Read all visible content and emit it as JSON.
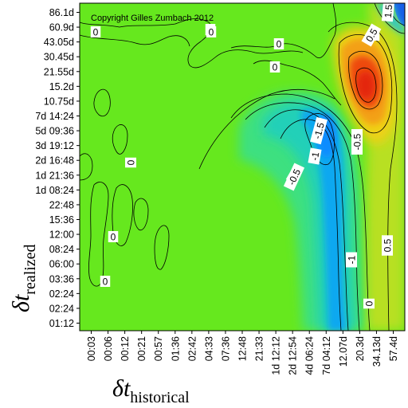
{
  "chart_data": {
    "type": "heatmap",
    "copyright": "Copyright Gilles Zumbach 2012",
    "xlabel": {
      "symbol": "δt",
      "subscript": "historical"
    },
    "ylabel": {
      "symbol": "δt",
      "subscript": "realized"
    },
    "x_ticks": [
      "00:03",
      "00:06",
      "00:12",
      "00:21",
      "00:57",
      "01:36",
      "02:42",
      "04:33",
      "07:36",
      "12:48",
      "21:33",
      "1d 12:12",
      "2d 12:54",
      "4d 06:24",
      "7d 04:12",
      "12.07d",
      "20.3d",
      "34.13d",
      "57.4d"
    ],
    "y_ticks": [
      "86.1d",
      "60.9d",
      "43.05d",
      "30.45d",
      "21.55d",
      "15.2d",
      "10.75d",
      "7d 14:24",
      "5d 09:36",
      "3d 19:12",
      "2d 16:48",
      "1d 21:36",
      "1d 08:24",
      "22:48",
      "15:36",
      "12:00",
      "08:24",
      "06:00",
      "03:36",
      "02:24",
      "02:24",
      "01:12"
    ],
    "contour_labels": [
      "0",
      "0",
      "0",
      "0",
      "0",
      "0",
      "0",
      "0",
      "0",
      "0",
      "-1.5",
      "-1",
      "-0.5",
      "-1",
      "-0.5",
      "0",
      "0.5",
      "0.5",
      "1.5"
    ],
    "value_summary": {
      "background_level": 0,
      "max": 2.0,
      "min": -1.8,
      "max_region": "x ≈ 20.3d, y ≈ 15.2d",
      "min_region": "x ≈ 4d 06:24 to 7d 04:12, y ≈ 5d 09:36"
    },
    "colors": {
      "background": "#66e81e",
      "high": "#e83010",
      "low": "#00a0ff",
      "contour": "#000000"
    }
  }
}
